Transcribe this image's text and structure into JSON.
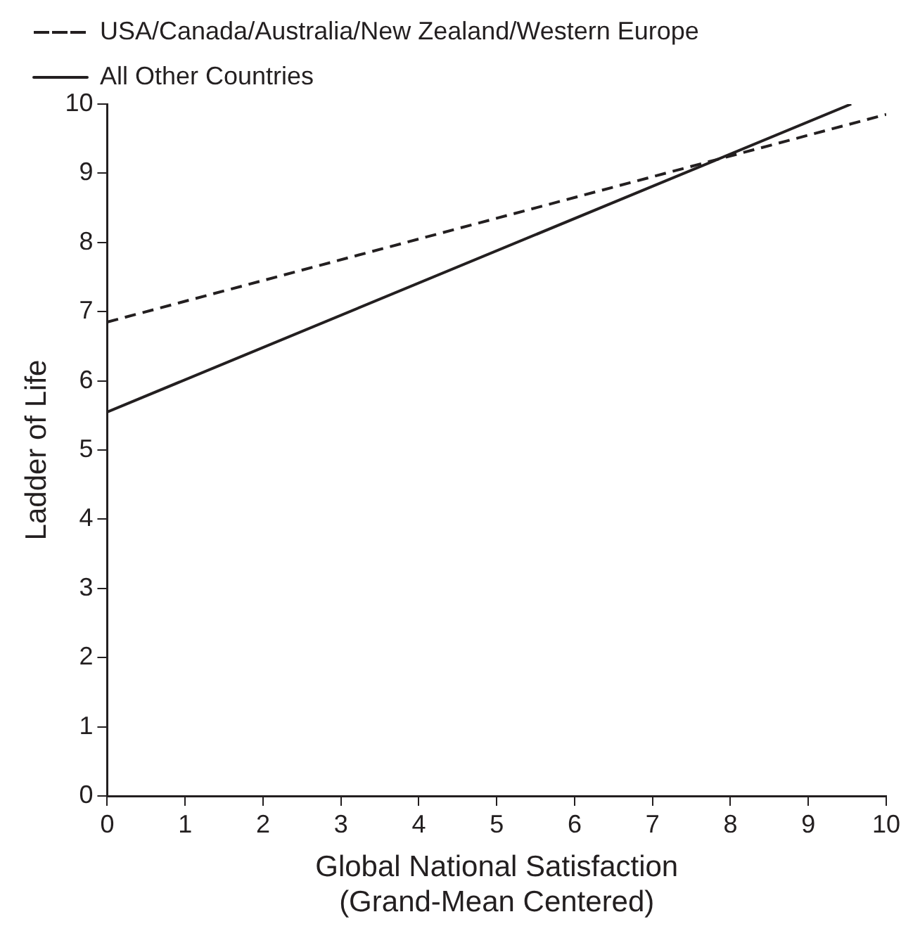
{
  "chart_data": {
    "type": "line",
    "xlabel": "Global National Satisfaction\n(Grand-Mean Centered)",
    "ylabel": "Ladder of Life",
    "series": [
      {
        "name": "USA/Canada/Australia/New Zealand/Western Europe",
        "color": "#231f20",
        "x": [
          0,
          10
        ],
        "values": [
          6.85,
          9.85
        ],
        "line_style": "dashed"
      },
      {
        "name": "All Other Countries",
        "color": "#231f20",
        "x": [
          0,
          9.55
        ],
        "values": [
          5.55,
          10
        ],
        "line_style": "solid"
      }
    ],
    "xlim": [
      0,
      10
    ],
    "ylim": [
      0,
      10
    ],
    "xticks": [
      0,
      1,
      2,
      3,
      4,
      5,
      6,
      7,
      8,
      9,
      10
    ],
    "yticks": [
      0,
      1,
      2,
      3,
      4,
      5,
      6,
      7,
      8,
      9,
      10
    ],
    "grid": false,
    "legend": "top left",
    "marker": "none"
  }
}
